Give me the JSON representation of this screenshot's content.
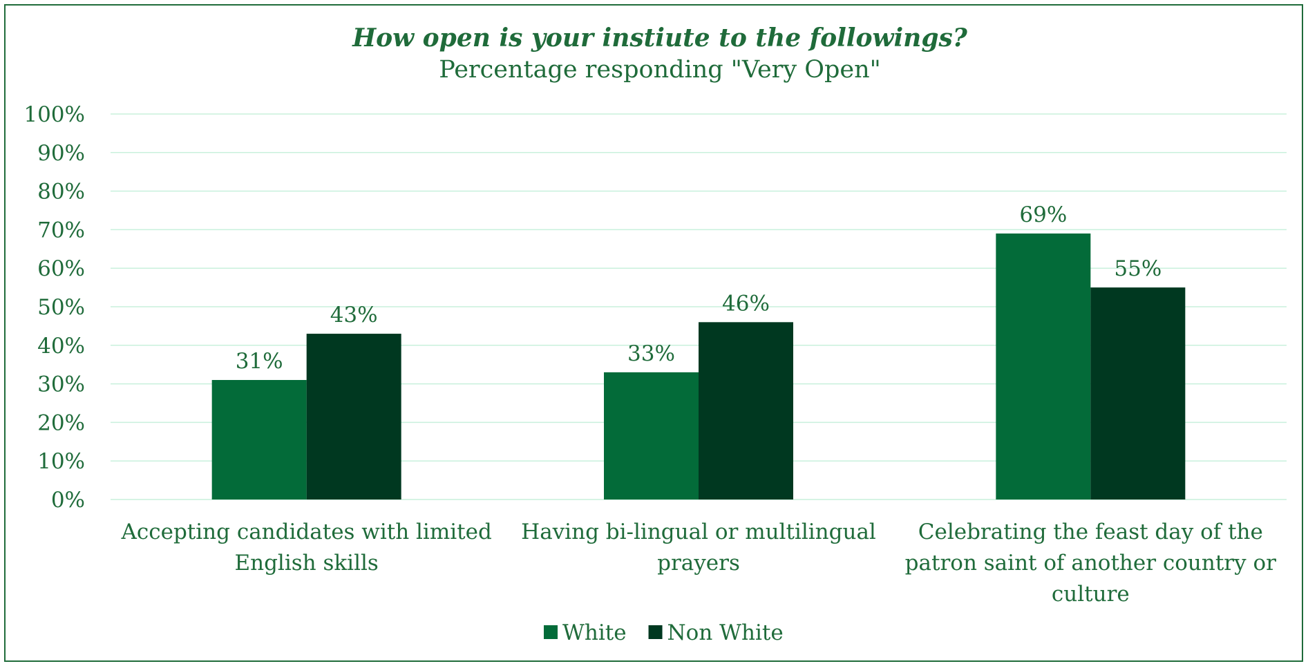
{
  "chart_data": {
    "type": "bar",
    "title": "How open is your instiute to the followings?",
    "subtitle": "Percentage responding \"Very Open\"",
    "categories": [
      [
        "Accepting candidates with limited",
        "English skills"
      ],
      [
        "Having bi-lingual or multilingual",
        "prayers"
      ],
      [
        "Celebrating the feast day of the",
        "patron saint of another country or",
        "culture"
      ]
    ],
    "series": [
      {
        "name": "White",
        "values": [
          31,
          33,
          69
        ],
        "labels": [
          "31%",
          "33%",
          "69%"
        ],
        "color": "#036b39"
      },
      {
        "name": "Non White",
        "values": [
          43,
          46,
          55
        ],
        "labels": [
          "43%",
          "46%",
          "55%"
        ],
        "color": "#003820"
      }
    ],
    "ylim": [
      0,
      100
    ],
    "yticks": [
      "0%",
      "10%",
      "20%",
      "30%",
      "40%",
      "50%",
      "60%",
      "70%",
      "80%",
      "90%",
      "100%"
    ],
    "grid": true,
    "legend_position": "bottom",
    "colors": {
      "text": "#1f6b3a",
      "grid": "#c8f0dc",
      "border": "#1f6b3a"
    }
  }
}
